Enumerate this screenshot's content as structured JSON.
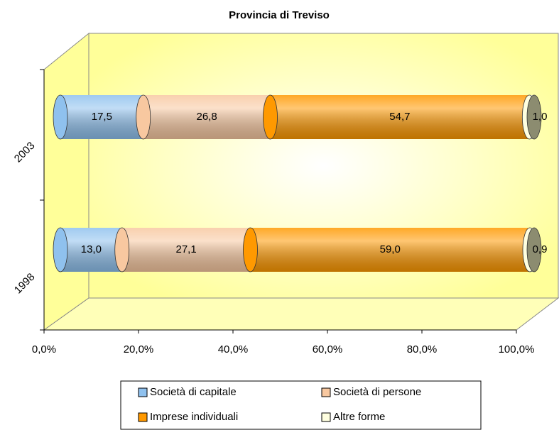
{
  "chart_data": {
    "type": "bar",
    "orientation": "horizontal",
    "stacked": true,
    "title": "Provincia di Treviso",
    "categories": [
      "1998",
      "2003"
    ],
    "series": [
      {
        "name": "Società di capitale",
        "color": "#8fc1ee",
        "values": [
          13.0,
          17.5
        ],
        "value_labels": [
          "13,0",
          "17,5"
        ]
      },
      {
        "name": "Società di persone",
        "color": "#f8c8a0",
        "values": [
          27.1,
          26.8
        ],
        "value_labels": [
          "27,1",
          "26,8"
        ]
      },
      {
        "name": "Imprese individuali",
        "color": "#ff9900",
        "values": [
          59.0,
          54.7
        ],
        "value_labels": [
          "59,0",
          "54,7"
        ]
      },
      {
        "name": "Altre forme",
        "color": "#ffffe0",
        "values": [
          0.9,
          1.0
        ],
        "value_labels": [
          "0,9",
          "1,0"
        ]
      }
    ],
    "xlim": [
      0,
      100
    ],
    "xticks": [
      {
        "value": 0,
        "label": "0,0%"
      },
      {
        "value": 20,
        "label": "20,0%"
      },
      {
        "value": 40,
        "label": "40,0%"
      },
      {
        "value": 60,
        "label": "60,0%"
      },
      {
        "value": 80,
        "label": "80,0%"
      },
      {
        "value": 100,
        "label": "100,0%"
      }
    ],
    "grid": false,
    "legend": "bottom"
  }
}
